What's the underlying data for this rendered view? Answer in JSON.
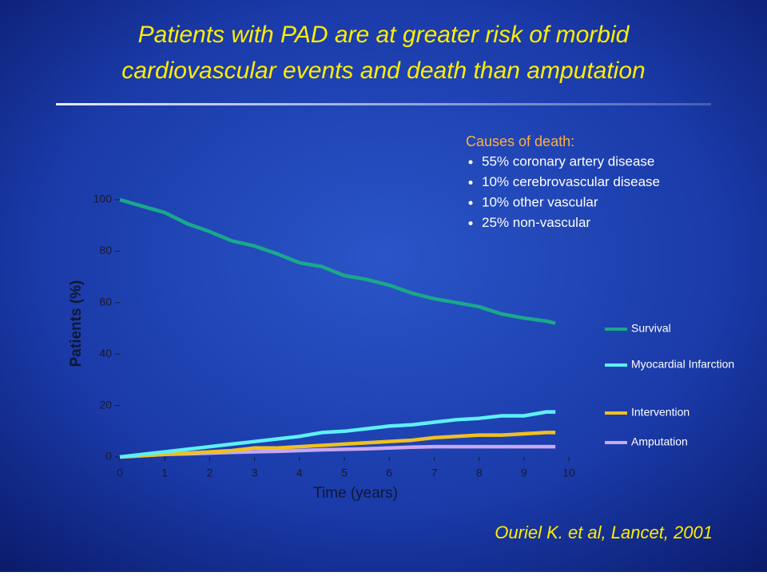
{
  "chart_data": {
    "type": "line",
    "title_lines": [
      "Patients with PAD are at greater risk of morbid",
      "cardiovascular events and death than amputation"
    ],
    "annotation_heading": "Causes of death:",
    "annotations": [
      "55% coronary artery disease",
      "10% cerebrovascular disease",
      "10% other vascular",
      "25% non-vascular"
    ],
    "source": "Ouriel K. et al, Lancet, 2001",
    "x_label": "Time (years)",
    "y_label": "Patients (%)",
    "x": [
      0,
      0.5,
      1,
      1.5,
      2,
      2.5,
      3,
      3.5,
      4,
      4.5,
      5,
      5.5,
      6,
      6.5,
      7,
      7.5,
      8,
      8.5,
      9,
      9.5,
      9.7
    ],
    "series": [
      {
        "name": "Survival",
        "color": "#1aa88a",
        "values": [
          100,
          97.5,
          95,
          90.7,
          87.6,
          84,
          82,
          79,
          75.5,
          74,
          70.5,
          69,
          66.8,
          63.7,
          61.5,
          60,
          58.4,
          55.6,
          54,
          52.8,
          52
        ]
      },
      {
        "name": "Myocardial Infarction",
        "color": "#5ef0f8",
        "values": [
          0,
          1,
          2,
          3,
          4,
          5,
          6,
          7,
          8,
          9.5,
          10,
          11,
          12,
          12.5,
          13.5,
          14.5,
          15,
          16,
          16,
          17.5,
          17.5
        ]
      },
      {
        "name": "Intervention",
        "color": "#f0c020",
        "values": [
          0,
          0.5,
          1,
          1.5,
          2,
          2.5,
          3.5,
          3.5,
          4,
          4.5,
          5,
          5.5,
          6,
          6.5,
          7.5,
          8,
          8.5,
          8.5,
          9,
          9.5,
          9.5
        ]
      },
      {
        "name": "Amputation",
        "color": "#c8a8f0",
        "values": [
          0,
          0.5,
          1,
          1.2,
          1.5,
          1.8,
          2,
          2.2,
          2.5,
          2.8,
          3,
          3.2,
          3.5,
          3.8,
          4,
          4,
          4,
          4,
          4,
          4,
          4
        ]
      }
    ],
    "xlim": [
      0,
      10
    ],
    "xticks": [
      0,
      1,
      2,
      3,
      4,
      5,
      6,
      7,
      8,
      9,
      10
    ],
    "ylim": [
      0,
      100
    ],
    "yticks": [
      0,
      20,
      40,
      60,
      80,
      100
    ],
    "legend": "right"
  }
}
